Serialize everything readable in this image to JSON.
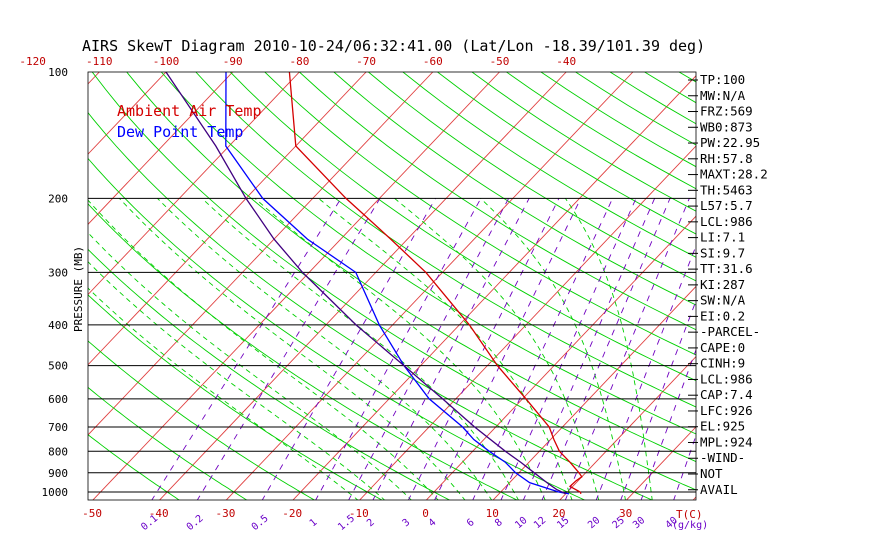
{
  "title": "AIRS SkewT Diagram 2010-10-24/06:32:41.00 (Lat/Lon -18.39/101.39 deg)",
  "ylabel": "PRESSURE (MB)",
  "colors": {
    "air_temp": "#d40000",
    "dew_point": "#0000ff",
    "parcel": "#400080",
    "isotherm": "#e04040",
    "dry_adiabat": "#00d000",
    "moist_adiabat": "#00d000",
    "mixing_ratio": "#7000c0",
    "isobar": "#000000"
  },
  "chart_data": {
    "type": "line",
    "title": "AIRS SkewT Diagram 2010-10-24/06:32:41.00 (Lat/Lon -18.39/101.39 deg)",
    "ylabel": "PRESSURE (MB)",
    "xlabel": "T(C)",
    "y_scale": "log",
    "ylim": [
      1050,
      100
    ],
    "pressure_ticks": [
      100,
      200,
      300,
      400,
      500,
      600,
      700,
      800,
      900,
      1000
    ],
    "bottom_temp_ticks": [
      -50,
      -40,
      -30,
      -20,
      -10,
      0,
      10,
      20,
      30
    ],
    "top_temp_ticks": [
      -120,
      -110,
      -100,
      -90,
      -80,
      -70,
      -60,
      -50,
      -40
    ],
    "mixing_ratio_ticks": [
      "0.1",
      "0.2",
      "0.5",
      "1",
      "1.5",
      "2",
      "3",
      "4",
      "6",
      "8",
      "10",
      "12",
      "15",
      "20",
      "25",
      "30",
      "40"
    ],
    "mixing_ratio_unit": "(g/kg)",
    "legend": [
      "Ambient Air Temp",
      "Dew Point Temp"
    ],
    "series": [
      {
        "name": "Ambient Air Temp",
        "points": [
          {
            "p": 1010,
            "t": 22.3
          },
          {
            "p": 1000,
            "t": 21.9
          },
          {
            "p": 970,
            "t": 19.6
          },
          {
            "p": 940,
            "t": 19.7
          },
          {
            "p": 920,
            "t": 20.0
          },
          {
            "p": 900,
            "t": 19.0
          },
          {
            "p": 850,
            "t": 16.2
          },
          {
            "p": 800,
            "t": 13.0
          },
          {
            "p": 750,
            "t": 10.5
          },
          {
            "p": 700,
            "t": 8.0
          },
          {
            "p": 600,
            "t": 0.5
          },
          {
            "p": 500,
            "t": -8.5
          },
          {
            "p": 400,
            "t": -18.5
          },
          {
            "p": 300,
            "t": -32.5
          },
          {
            "p": 250,
            "t": -42.5
          },
          {
            "p": 200,
            "t": -55.0
          },
          {
            "p": 150,
            "t": -70.0
          },
          {
            "p": 100,
            "t": -81.5
          }
        ]
      },
      {
        "name": "Dew Point Temp",
        "points": [
          {
            "p": 1010,
            "t": 20.5
          },
          {
            "p": 1000,
            "t": 18.7
          },
          {
            "p": 950,
            "t": 13.0
          },
          {
            "p": 900,
            "t": 9.5
          },
          {
            "p": 850,
            "t": 6.5
          },
          {
            "p": 800,
            "t": 2.5
          },
          {
            "p": 750,
            "t": -1.5
          },
          {
            "p": 700,
            "t": -5.0
          },
          {
            "p": 600,
            "t": -14.0
          },
          {
            "p": 500,
            "t": -22.5
          },
          {
            "p": 400,
            "t": -32.0
          },
          {
            "p": 300,
            "t": -43.0
          },
          {
            "p": 250,
            "t": -55.0
          },
          {
            "p": 200,
            "t": -67.5
          },
          {
            "p": 150,
            "t": -80.5
          },
          {
            "p": 100,
            "t": -91.0
          }
        ]
      },
      {
        "points": [
          {
            "p": 1010,
            "t": 20.0
          },
          {
            "p": 986,
            "t": 18.0
          },
          {
            "p": 950,
            "t": 15.6
          },
          {
            "p": 900,
            "t": 12.3
          },
          {
            "p": 850,
            "t": 8.8
          },
          {
            "p": 800,
            "t": 4.9
          },
          {
            "p": 700,
            "t": -3.2
          },
          {
            "p": 600,
            "t": -12.0
          },
          {
            "p": 500,
            "t": -22.5
          },
          {
            "p": 400,
            "t": -35.5
          },
          {
            "p": 300,
            "t": -51.0
          },
          {
            "p": 250,
            "t": -60.0
          },
          {
            "p": 200,
            "t": -70.0
          },
          {
            "p": 150,
            "t": -82.0
          },
          {
            "p": 100,
            "t": -100.0
          }
        ]
      }
    ]
  },
  "indices": [
    "TP:100",
    "MW:N/A",
    "FRZ:569",
    "WB0:873",
    "PW:22.95",
    "RH:57.8",
    "MAXT:28.2",
    "TH:5463",
    "L57:5.7",
    "LCL:986",
    "LI:7.1",
    "SI:9.7",
    "TT:31.6",
    "KI:287",
    "SW:N/A",
    "EI:0.2",
    "-PARCEL-",
    "CAPE:0",
    "CINH:9",
    "LCL:986",
    "CAP:7.4",
    "LFC:926",
    "EL:925",
    "MPL:924",
    "-WIND-",
    " NOT",
    " AVAIL"
  ]
}
